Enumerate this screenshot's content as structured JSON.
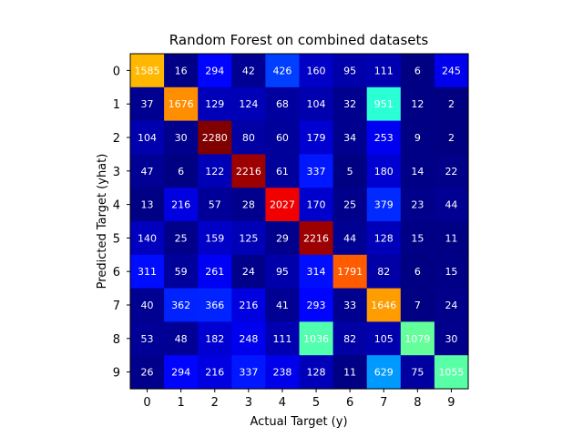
{
  "chart_data": {
    "type": "heatmap",
    "title": "Random Forest on combined datasets",
    "xlabel": "Actual Target (y)",
    "ylabel": "Predicted Target (yhat)",
    "x_ticks": [
      "0",
      "1",
      "2",
      "3",
      "4",
      "5",
      "6",
      "7",
      "8",
      "9"
    ],
    "y_ticks": [
      "0",
      "1",
      "2",
      "3",
      "4",
      "5",
      "6",
      "7",
      "8",
      "9"
    ],
    "colormap": "jet",
    "value_range": [
      0,
      2280
    ],
    "cell_text_color": "#ffffff",
    "matrix": [
      [
        1585,
        16,
        294,
        42,
        426,
        160,
        95,
        111,
        6,
        245
      ],
      [
        37,
        1676,
        129,
        124,
        68,
        104,
        32,
        951,
        12,
        2
      ],
      [
        104,
        30,
        2280,
        80,
        60,
        179,
        34,
        253,
        9,
        2
      ],
      [
        47,
        6,
        122,
        2216,
        61,
        337,
        5,
        180,
        14,
        22
      ],
      [
        13,
        216,
        57,
        28,
        2027,
        170,
        25,
        379,
        23,
        44
      ],
      [
        140,
        25,
        159,
        125,
        29,
        2216,
        44,
        128,
        15,
        11
      ],
      [
        311,
        59,
        261,
        24,
        95,
        314,
        1791,
        82,
        6,
        15
      ],
      [
        40,
        362,
        366,
        216,
        41,
        293,
        33,
        1646,
        7,
        24
      ],
      [
        53,
        48,
        182,
        248,
        111,
        1036,
        82,
        105,
        1079,
        30
      ],
      [
        26,
        294,
        216,
        337,
        238,
        128,
        11,
        629,
        75,
        1055
      ]
    ]
  }
}
